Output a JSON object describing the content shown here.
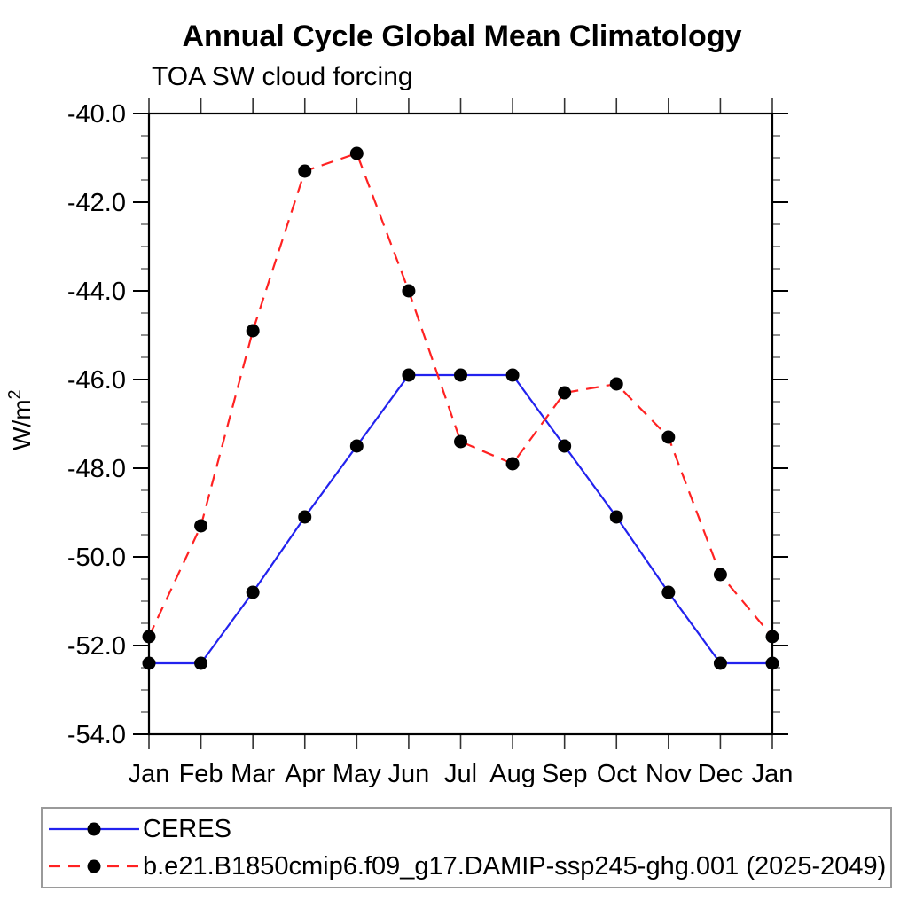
{
  "title": "Annual Cycle Global Mean Climatology",
  "subtitle": "TOA SW cloud forcing",
  "y_axis": {
    "unit_base": "W/m",
    "unit_exponent": "2"
  },
  "colors": {
    "ceres_line": "#2222ee",
    "model_line": "#ff2222",
    "marker": "#000000",
    "axis": "#000000",
    "legend_border": "#9a9a9a"
  },
  "chart_data": {
    "type": "line",
    "title": "Annual Cycle Global Mean Climatology",
    "subtitle": "TOA SW cloud forcing",
    "ylabel_base": "W/m",
    "ylabel_exponent": "2",
    "x_categories": [
      "Jan",
      "Feb",
      "Mar",
      "Apr",
      "May",
      "Jun",
      "Jul",
      "Aug",
      "Sep",
      "Oct",
      "Nov",
      "Dec",
      "Jan"
    ],
    "ylim": [
      -54.0,
      -40.0
    ],
    "y_major_ticks": [
      -40.0,
      -42.0,
      -44.0,
      -46.0,
      -48.0,
      -50.0,
      -52.0,
      -54.0
    ],
    "y_tick_labels": [
      "-40.0",
      "-42.0",
      "-44.0",
      "-46.0",
      "-48.0",
      "-50.0",
      "-52.0",
      "-54.0"
    ],
    "y_minor_step": 0.5,
    "grid": false,
    "legend_position": "bottom",
    "series": [
      {
        "name": "CERES",
        "color": "#2222ee",
        "line_style": "solid",
        "marker": "circle",
        "marker_color": "#000000",
        "values": [
          -52.4,
          -52.4,
          -50.8,
          -49.1,
          -47.5,
          -45.9,
          -45.9,
          -45.9,
          -47.5,
          -49.1,
          -50.8,
          -52.4,
          -52.4
        ]
      },
      {
        "name": "b.e21.B1850cmip6.f09_g17.DAMIP-ssp245-ghg.001 (2025-2049)",
        "color": "#ff2222",
        "line_style": "dashed",
        "marker": "circle",
        "marker_color": "#000000",
        "values": [
          -51.8,
          -49.3,
          -44.9,
          -41.3,
          -40.9,
          -44.0,
          -47.4,
          -47.9,
          -46.3,
          -46.1,
          -47.3,
          -50.4,
          -51.8
        ]
      }
    ]
  }
}
